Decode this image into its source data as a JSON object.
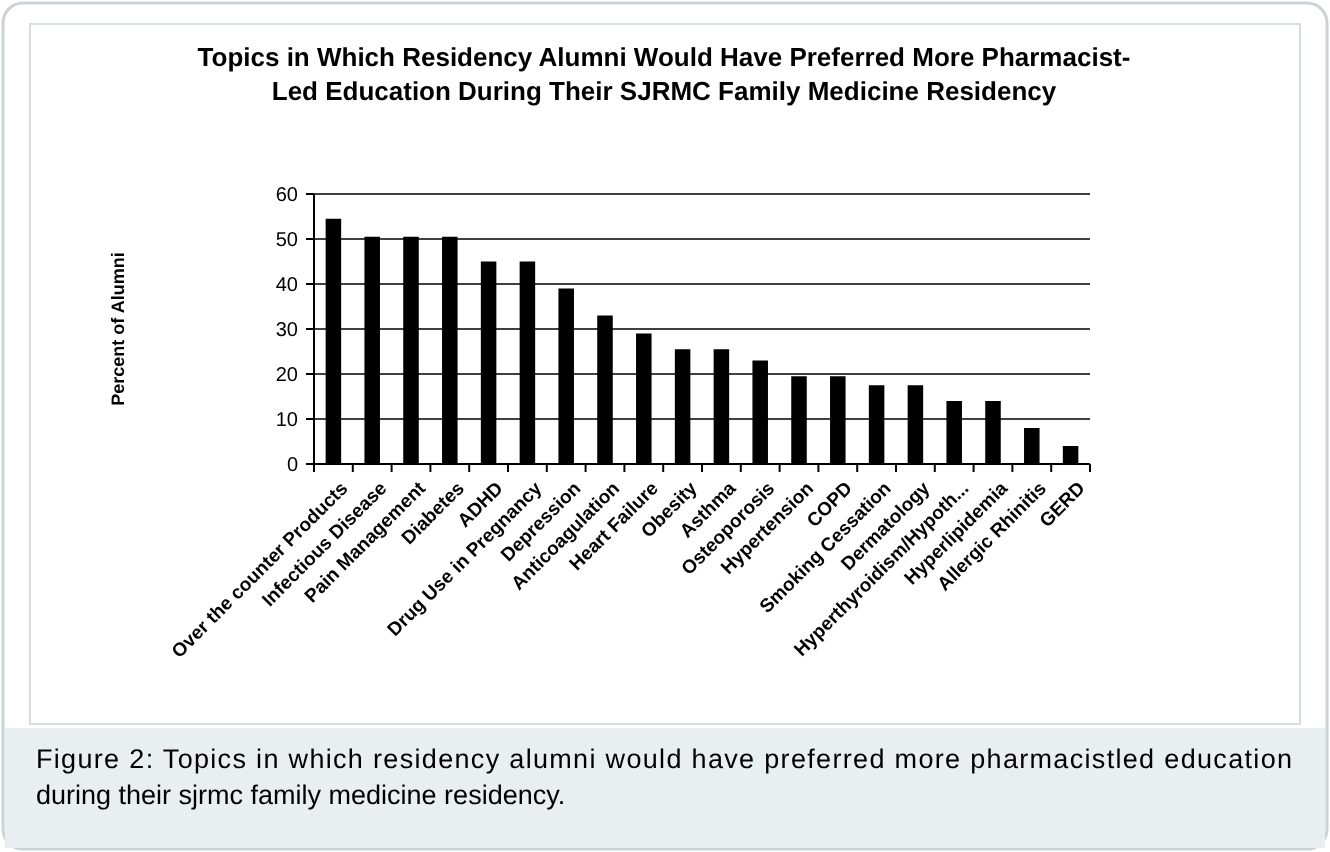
{
  "chart_data": {
    "type": "bar",
    "title": "Topics in Which Residency Alumni Would Have Preferred More Pharmacist-Led Education During Their SJRMC Family Medicine Residency",
    "ylabel": "Percent of Alumni",
    "categories": [
      "Over the counter Products",
      "Infectious Disease",
      "Pain Management",
      "Diabetes",
      "ADHD",
      "Drug Use in Pregnancy",
      "Depression",
      "Anticoagulation",
      "Heart Failure",
      "Obesity",
      "Asthma",
      "Osteoporosis",
      "Hypertension",
      "COPD",
      "Smoking Cessation",
      "Dermatology",
      "Hyperthyroidism/Hypoth...",
      "Hyperlipidemia",
      "Allergic Rhinitis",
      "GERD"
    ],
    "values": [
      54.5,
      50.5,
      50.5,
      50.5,
      45,
      45,
      39,
      33,
      29,
      25.5,
      25.5,
      23,
      19.5,
      19.5,
      17.5,
      17.5,
      14,
      14,
      8,
      4
    ],
    "color": "#000000",
    "ylim": [
      0,
      60
    ],
    "yticks": [
      0,
      10,
      20,
      30,
      40,
      50,
      60
    ],
    "grid": "y",
    "annotations": [
      "Figure 2: Topics in which residency alumni would have preferred more pharmacistled education during their sjrmc family medicine residency."
    ]
  }
}
